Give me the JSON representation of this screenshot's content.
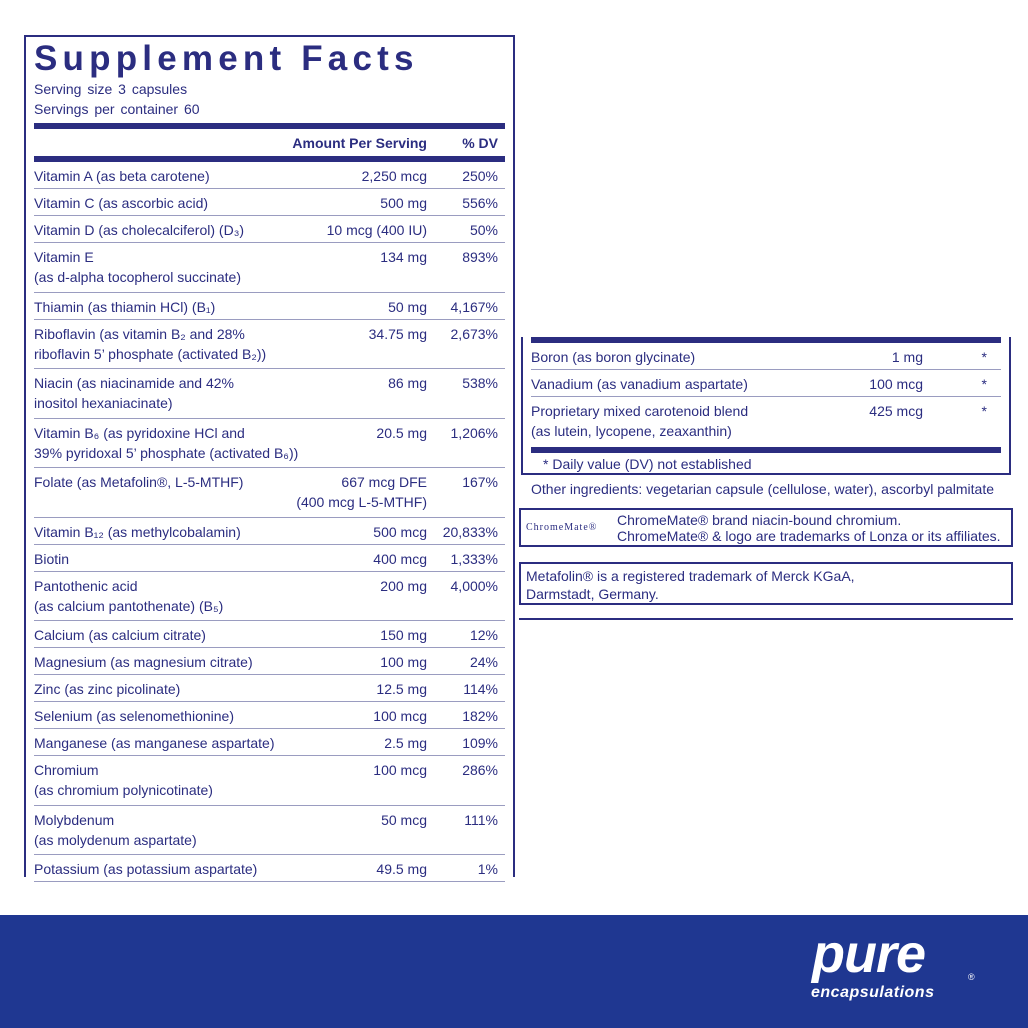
{
  "title": "Supplement Facts",
  "serving_size": "Serving size  3 capsules",
  "servings_per_container": "Servings per container  60",
  "header": {
    "amount": "Amount Per Serving",
    "dv": "% DV"
  },
  "rows": [
    {
      "name": "Vitamin A (as beta carotene)",
      "amount": "2,250 mcg",
      "dv": "250%"
    },
    {
      "name": "Vitamin C (as ascorbic acid)",
      "amount": "500 mg",
      "dv": "556%"
    },
    {
      "name": "Vitamin D (as cholecalciferol) (D₃)",
      "amount": "10 mcg (400 IU)",
      "dv": "50%"
    },
    {
      "name": "Vitamin E\n(as d-alpha tocopherol succinate)",
      "amount": "134 mg",
      "dv": "893%"
    },
    {
      "name": "Thiamin (as thiamin HCl) (B₁)",
      "amount": "50 mg",
      "dv": "4,167%"
    },
    {
      "name": "Riboflavin (as vitamin B₂ and 28%\nriboflavin 5’ phosphate (activated B₂))",
      "amount": "34.75 mg",
      "dv": "2,673%"
    },
    {
      "name": "Niacin (as niacinamide and 42%\ninositol hexaniacinate)",
      "amount": "86 mg",
      "dv": "538%"
    },
    {
      "name": "Vitamin B₆ (as pyridoxine HCl and\n39% pyridoxal 5’ phosphate (activated B₆))",
      "amount": "20.5 mg",
      "dv": "1,206%"
    },
    {
      "name": "Folate (as Metafolin®, L-5-MTHF)",
      "amount": "667 mcg DFE\n(400 mcg L-5-MTHF)",
      "dv": "167%"
    },
    {
      "name": "Vitamin B₁₂ (as methylcobalamin)",
      "amount": "500 mcg",
      "dv": "20,833%"
    },
    {
      "name": "Biotin",
      "amount": "400 mcg",
      "dv": "1,333%"
    },
    {
      "name": "Pantothenic acid\n(as calcium pantothenate) (B₅)",
      "amount": "200 mg",
      "dv": "4,000%"
    },
    {
      "name": "Calcium (as calcium citrate)",
      "amount": "150 mg",
      "dv": "12%"
    },
    {
      "name": "Magnesium (as magnesium citrate)",
      "amount": "100 mg",
      "dv": "24%"
    },
    {
      "name": "Zinc (as zinc picolinate)",
      "amount": "12.5 mg",
      "dv": "114%"
    },
    {
      "name": "Selenium (as selenomethionine)",
      "amount": "100 mcg",
      "dv": "182%"
    },
    {
      "name": "Manganese (as manganese aspartate)",
      "amount": "2.5 mg",
      "dv": "109%"
    },
    {
      "name": "Chromium\n(as chromium polynicotinate)",
      "amount": "100 mcg",
      "dv": "286%"
    },
    {
      "name": "Molybdenum\n(as molydenum aspartate)",
      "amount": "50 mcg",
      "dv": "111%"
    },
    {
      "name": "Potassium (as potassium aspartate)",
      "amount": "49.5 mg",
      "dv": "1%"
    }
  ],
  "right_rows": [
    {
      "name": "Boron (as boron glycinate)",
      "amount": "1 mg",
      "dv": "*"
    },
    {
      "name": "Vanadium (as vanadium aspartate)",
      "amount": "100 mcg",
      "dv": "*"
    },
    {
      "name": "Proprietary mixed carotenoid blend\n(as lutein, lycopene, zeaxanthin)",
      "amount": "425 mcg",
      "dv": "*"
    }
  ],
  "footnote": "*  Daily value (DV) not established",
  "other_ingredients": "Other ingredients: vegetarian capsule (cellulose, water), ascorbyl palmitate",
  "chromemate": {
    "logo": "ChromeMate®",
    "line1": "ChromeMate® brand niacin-bound chromium.",
    "line2": "ChromeMate® & logo are trademarks of Lonza or its affiliates."
  },
  "metafolin": "Metafolin® is a registered trademark of Merck KGaA,\nDarmstadt, Germany.",
  "brand": {
    "name": "pure",
    "sub": "encapsulations",
    "reg": "®"
  },
  "colors": {
    "label_blue": "#2b2d80",
    "banner_blue": "#1f3791"
  }
}
